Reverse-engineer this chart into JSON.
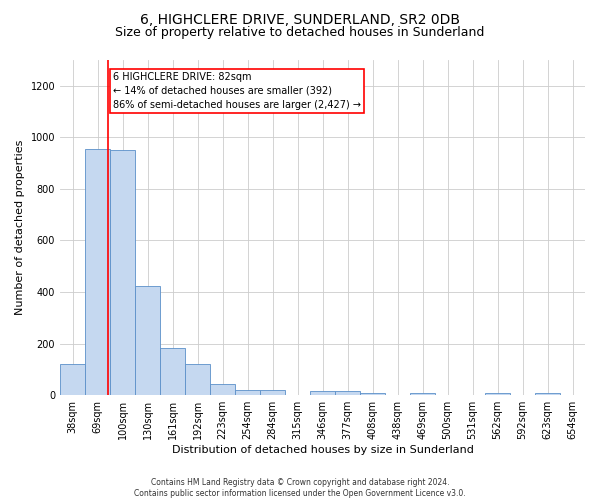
{
  "title": "6, HIGHCLERE DRIVE, SUNDERLAND, SR2 0DB",
  "subtitle": "Size of property relative to detached houses in Sunderland",
  "xlabel": "Distribution of detached houses by size in Sunderland",
  "ylabel": "Number of detached properties",
  "categories": [
    "38sqm",
    "69sqm",
    "100sqm",
    "130sqm",
    "161sqm",
    "192sqm",
    "223sqm",
    "254sqm",
    "284sqm",
    "315sqm",
    "346sqm",
    "377sqm",
    "408sqm",
    "438sqm",
    "469sqm",
    "500sqm",
    "531sqm",
    "562sqm",
    "592sqm",
    "623sqm",
    "654sqm"
  ],
  "values": [
    120,
    955,
    950,
    425,
    183,
    120,
    43,
    20,
    20,
    0,
    15,
    15,
    10,
    0,
    10,
    0,
    0,
    10,
    0,
    10,
    0
  ],
  "bar_color": "#c5d8f0",
  "bar_edgecolor": "#5b8fc9",
  "ylim": [
    0,
    1300
  ],
  "yticks": [
    0,
    200,
    400,
    600,
    800,
    1000,
    1200
  ],
  "annotation_text": "6 HIGHCLERE DRIVE: 82sqm\n← 14% of detached houses are smaller (392)\n86% of semi-detached houses are larger (2,427) →",
  "footer1": "Contains HM Land Registry data © Crown copyright and database right 2024.",
  "footer2": "Contains public sector information licensed under the Open Government Licence v3.0.",
  "title_fontsize": 10,
  "subtitle_fontsize": 9,
  "ylabel_fontsize": 8,
  "xlabel_fontsize": 8,
  "tick_fontsize": 7,
  "ann_fontsize": 7,
  "footer_fontsize": 5.5,
  "background_color": "#ffffff",
  "grid_color": "#cccccc"
}
